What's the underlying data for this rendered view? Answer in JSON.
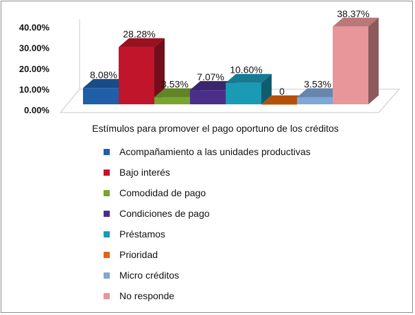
{
  "chart_data": {
    "type": "bar",
    "title": "",
    "xlabel": "Estímulos para promover el pago oportuno de los créditos",
    "ylabel": "",
    "ylim": [
      0,
      40
    ],
    "yticks": [
      "0.00%",
      "10.00%",
      "20.00%",
      "30.00%",
      "40.00%"
    ],
    "grid": false,
    "legend_position": "bottom",
    "series": [
      {
        "name": "Acompañamiento a las unidades productivas",
        "value": 8.08,
        "label": "8.08%",
        "color": "#1f5fa8"
      },
      {
        "name": "Bajo interés",
        "value": 28.28,
        "label": "28.28%",
        "color": "#c0152a"
      },
      {
        "name": "Comodidad de pago",
        "value": 3.53,
        "label": "3.53%",
        "color": "#78a52f"
      },
      {
        "name": "Condiciones de pago",
        "value": 7.07,
        "label": "7.07%",
        "color": "#4a2f8a"
      },
      {
        "name": "Préstamos",
        "value": 10.6,
        "label": "10.60%",
        "color": "#1a9ab5"
      },
      {
        "name": "Prioridad",
        "value": 0,
        "label": "0",
        "color": "#e0650f"
      },
      {
        "name": "Micro créditos",
        "value": 3.53,
        "label": "3.53%",
        "color": "#7fa7d8"
      },
      {
        "name": "No responde",
        "value": 38.37,
        "label": "38.37%",
        "color": "#e8969a"
      }
    ]
  }
}
